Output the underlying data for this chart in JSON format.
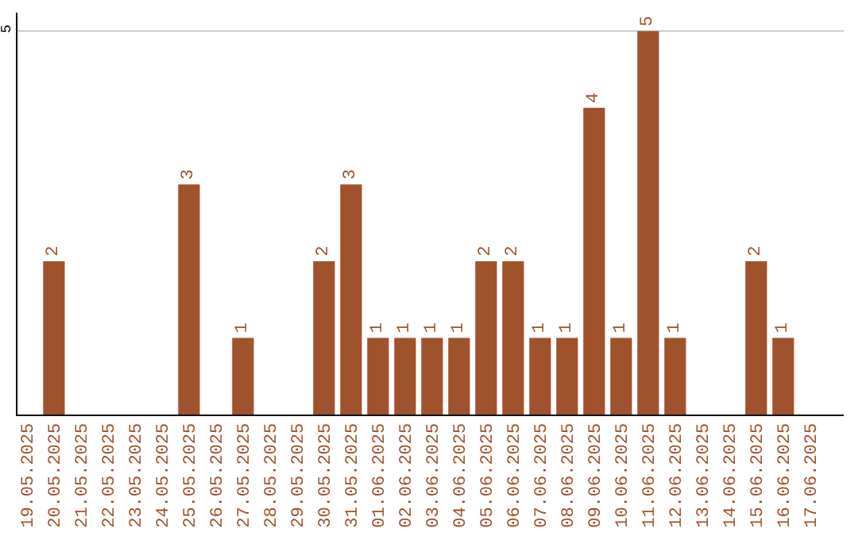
{
  "chart_data": {
    "type": "bar",
    "categories": [
      "19.05.2025",
      "20.05.2025",
      "21.05.2025",
      "22.05.2025",
      "23.05.2025",
      "24.05.2025",
      "25.05.2025",
      "26.05.2025",
      "27.05.2025",
      "28.05.2025",
      "29.05.2025",
      "30.05.2025",
      "31.05.2025",
      "01.06.2025",
      "02.06.2025",
      "03.06.2025",
      "04.06.2025",
      "05.06.2025",
      "06.06.2025",
      "07.06.2025",
      "08.06.2025",
      "09.06.2025",
      "10.06.2025",
      "11.06.2025",
      "12.06.2025",
      "13.06.2025",
      "14.06.2025",
      "15.06.2025",
      "16.06.2025",
      "17.06.2025"
    ],
    "values": [
      0,
      2,
      0,
      0,
      0,
      0,
      3,
      0,
      1,
      0,
      0,
      2,
      3,
      1,
      1,
      1,
      1,
      2,
      2,
      1,
      1,
      4,
      1,
      5,
      1,
      0,
      0,
      2,
      1,
      0
    ],
    "value_labels": [
      null,
      "2",
      null,
      null,
      null,
      null,
      "3",
      null,
      "1",
      null,
      null,
      "2",
      "3",
      "1",
      "1",
      "1",
      "1",
      "2",
      "2",
      "1",
      "1",
      "4",
      "1",
      "5",
      "1",
      null,
      null,
      "2",
      "1",
      null
    ],
    "color": "#a0522d",
    "ylim": [
      0,
      5.24
    ],
    "yticks": [
      5
    ],
    "grid": "y"
  }
}
